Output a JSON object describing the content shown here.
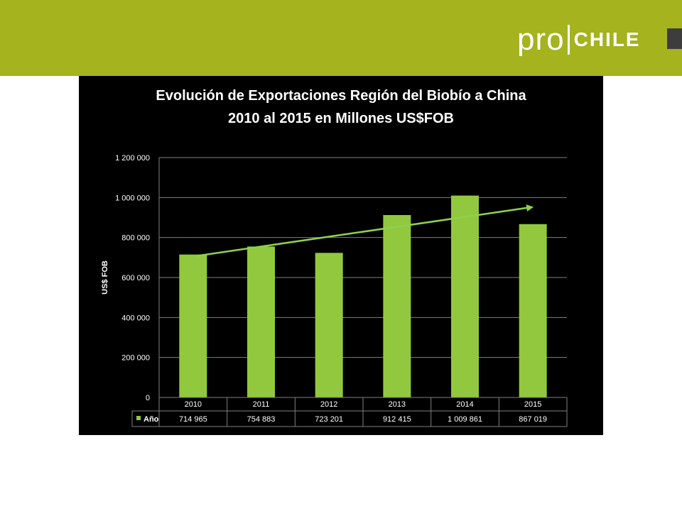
{
  "logo": {
    "pro": "pro",
    "chile": "CHILE"
  },
  "colors": {
    "header": "#a4b31e",
    "bar": "#92c83e",
    "trend": "#8fd14f",
    "panel": "#000000"
  },
  "chart_data": {
    "type": "bar",
    "title_line1": "Evolución de Exportaciones Región del Biobío a China",
    "title_line2": "2010 al 2015 en Millones US$FOB",
    "ylabel": "US$ FOB",
    "ylim": [
      0,
      1200000
    ],
    "yticks": [
      0,
      200000,
      400000,
      600000,
      800000,
      1000000,
      1200000
    ],
    "ytick_labels": [
      "0",
      "200 000",
      "400 000",
      "600 000",
      "800 000",
      "1 000 000",
      "1 200 000"
    ],
    "categories": [
      "2010",
      "2011",
      "2012",
      "2013",
      "2014",
      "2015"
    ],
    "series": [
      {
        "name": "Año",
        "values": [
          714965,
          754883,
          723201,
          912415,
          1009861,
          867019
        ],
        "labels": [
          "714 965",
          "754 883",
          "723 201",
          "912 415",
          "1 009 861",
          "867 019"
        ]
      }
    ],
    "trendline": {
      "type": "linear",
      "arrow": true
    },
    "grid": true,
    "data_table": true
  }
}
